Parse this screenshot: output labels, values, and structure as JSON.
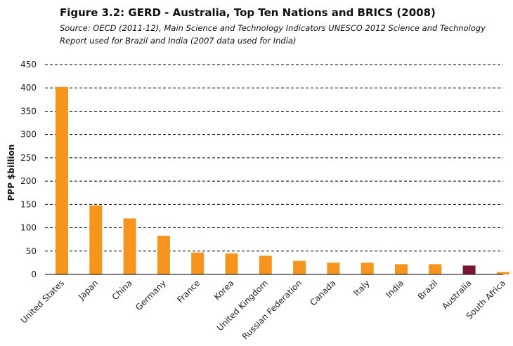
{
  "chart_data": {
    "type": "bar",
    "title": "Figure 3.2: GERD - Australia, Top Ten Nations and BRICS (2008)",
    "subtitle": "Source: OECD (2011-12), Main Science and Technology Indicators UNESCO 2012 Science and Technology Report used for Brazil and India (2007 data used for India)",
    "xlabel": "",
    "ylabel": "PPP $billion",
    "ylim": [
      0,
      450
    ],
    "yticks": [
      0,
      50,
      100,
      150,
      200,
      250,
      300,
      350,
      400,
      450
    ],
    "grid": true,
    "categories": [
      "United States",
      "Japan",
      "China",
      "Germany",
      "France",
      "Korea",
      "United Kingdom",
      "Russian Federation",
      "Canada",
      "Italy",
      "India",
      "Brazil",
      "Australia",
      "South Africa"
    ],
    "values": [
      402,
      148,
      120,
      83,
      47,
      45,
      40,
      29,
      25,
      25,
      22,
      22,
      19,
      5
    ],
    "colors": {
      "default": "#F7941D",
      "highlight": "#7A1430",
      "highlight_category": "Australia"
    }
  }
}
